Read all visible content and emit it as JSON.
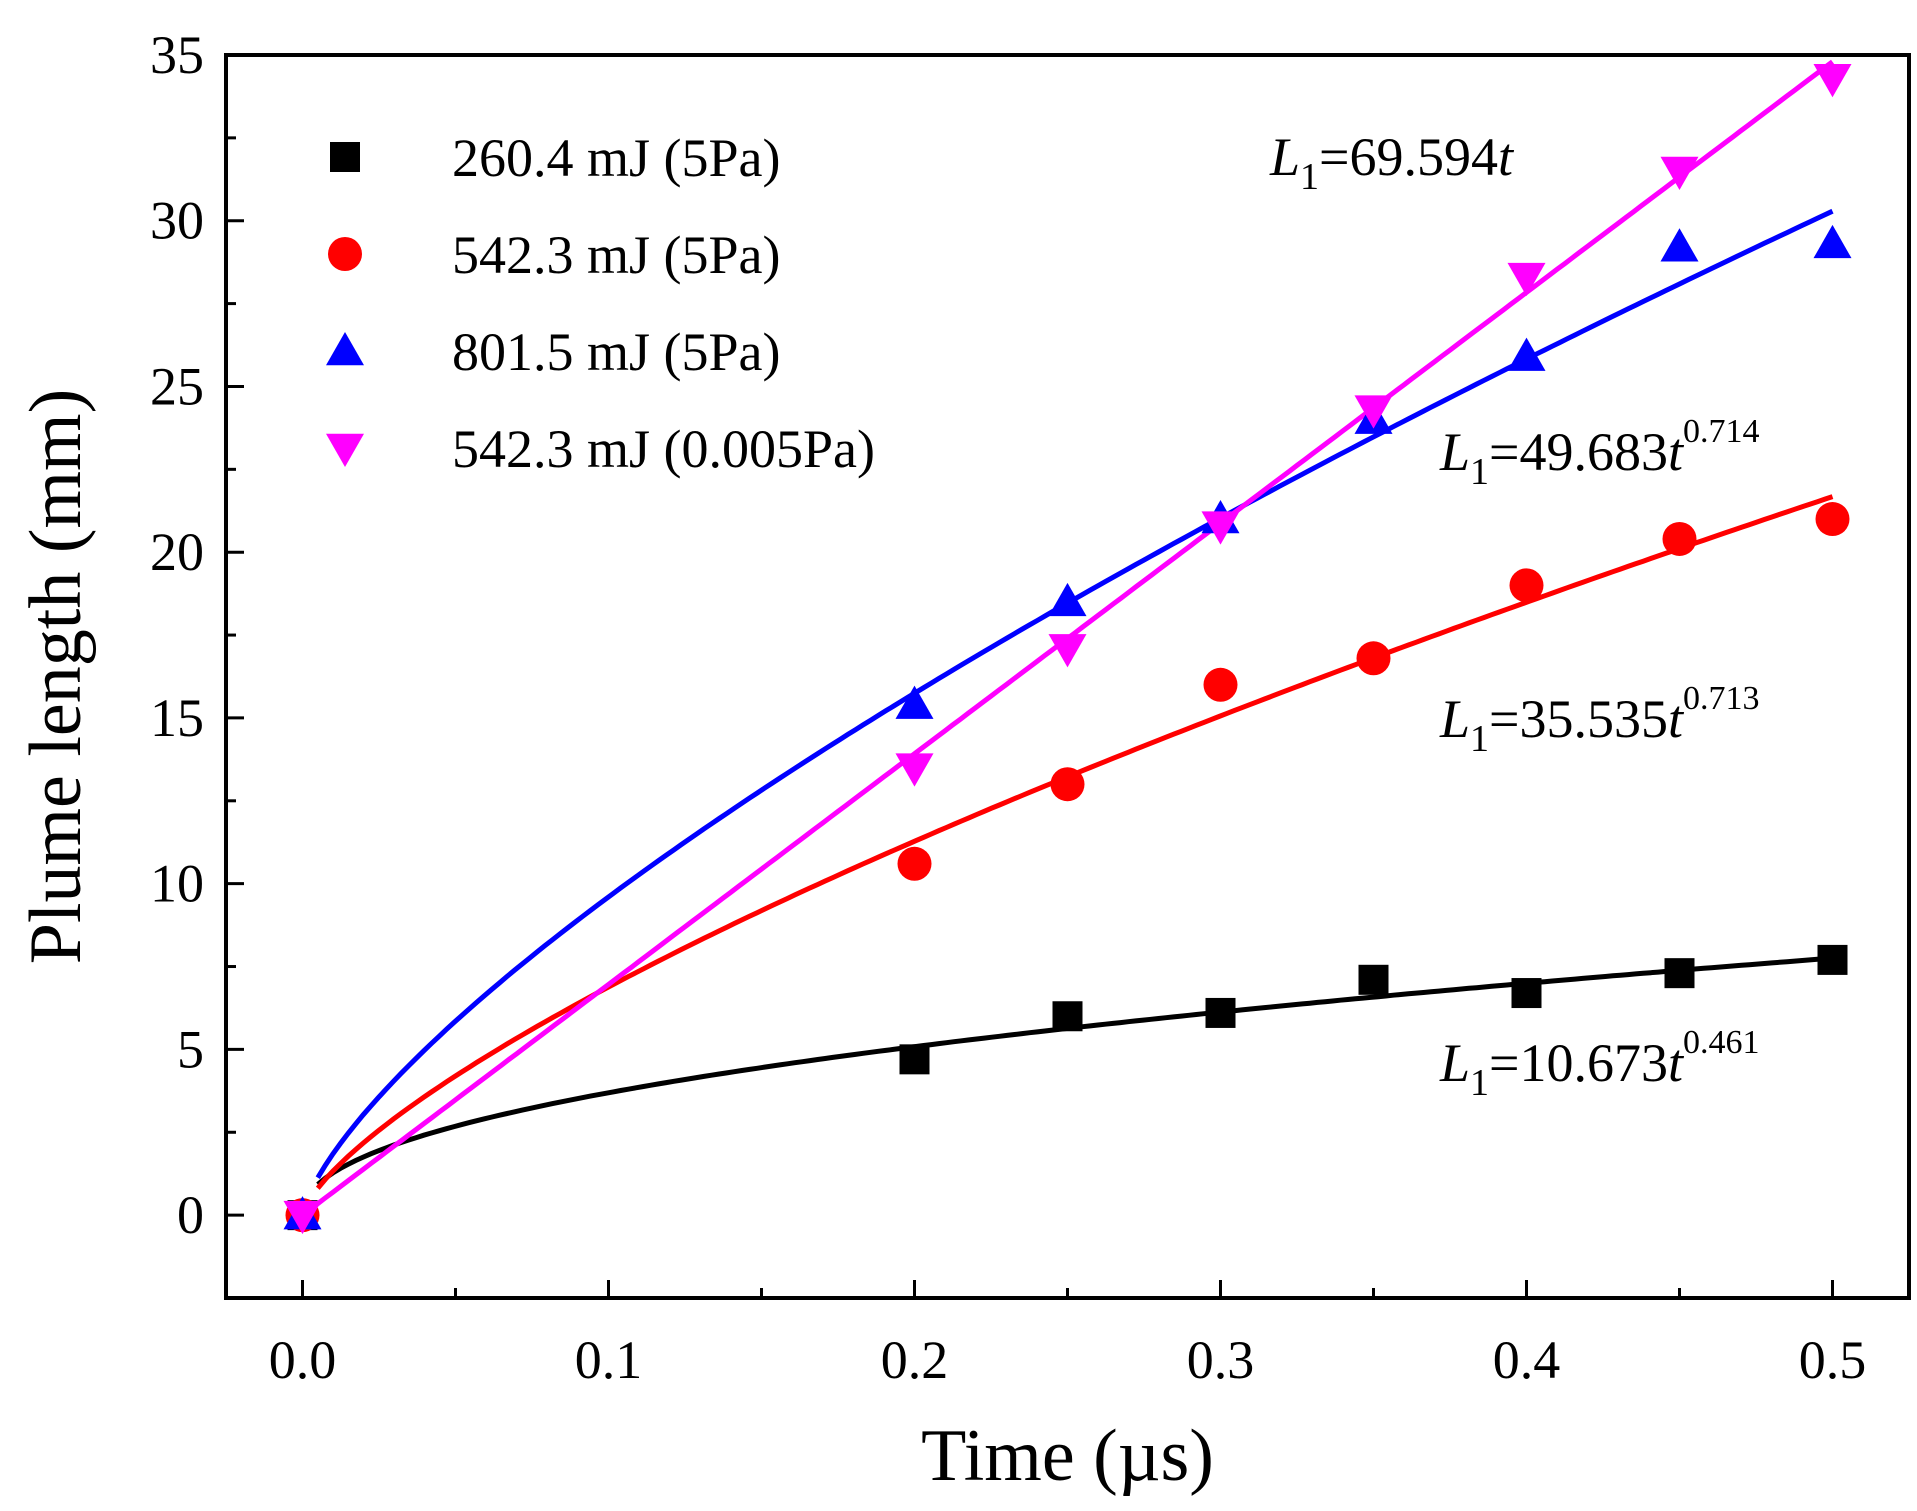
{
  "chart_data": {
    "type": "scatter",
    "xlabel": "Time (µs)",
    "ylabel": "Plume length (mm)",
    "xlim": [
      -0.025,
      0.525
    ],
    "ylim": [
      -2.5,
      35
    ],
    "xticks": [
      "0.0",
      "0.1",
      "0.2",
      "0.3",
      "0.4",
      "0.5"
    ],
    "yticks": [
      "0",
      "5",
      "10",
      "15",
      "20",
      "25",
      "30",
      "35"
    ],
    "legend_position": "top-left",
    "series": [
      {
        "name": "260.4 mJ (5Pa)",
        "color": "#000000",
        "marker": "square",
        "x": [
          0.0,
          0.2,
          0.25,
          0.3,
          0.35,
          0.4,
          0.45,
          0.5
        ],
        "y": [
          0.0,
          4.7,
          6.0,
          6.1,
          7.1,
          6.7,
          7.3,
          7.7
        ],
        "fit": {
          "coef": 10.673,
          "exp": 0.461
        }
      },
      {
        "name": "542.3 mJ (5Pa)",
        "color": "#ff0000",
        "marker": "circle",
        "x": [
          0.0,
          0.2,
          0.25,
          0.3,
          0.35,
          0.4,
          0.45,
          0.5
        ],
        "y": [
          0.0,
          10.6,
          13.0,
          16.0,
          16.8,
          19.0,
          20.4,
          21.0
        ],
        "fit": {
          "coef": 35.535,
          "exp": 0.713
        }
      },
      {
        "name": "801.5 mJ (5Pa)",
        "color": "#0000ff",
        "marker": "triangle-up",
        "x": [
          0.0,
          0.2,
          0.25,
          0.3,
          0.35,
          0.4,
          0.45,
          0.5
        ],
        "y": [
          0.0,
          15.4,
          18.5,
          21.0,
          24.0,
          25.9,
          29.2,
          29.3
        ],
        "fit": {
          "coef": 49.683,
          "exp": 0.714
        }
      },
      {
        "name": "542.3 mJ (0.005Pa)",
        "color": "#ff00ff",
        "marker": "triangle-down",
        "x": [
          0.0,
          0.2,
          0.25,
          0.3,
          0.35,
          0.4,
          0.45,
          0.5
        ],
        "y": [
          0.0,
          13.5,
          17.1,
          20.8,
          24.3,
          28.3,
          31.5,
          34.3
        ],
        "fit": {
          "coef": 69.594,
          "exp": 1
        }
      }
    ],
    "annotations": [
      {
        "symbol": "L",
        "sub": "1",
        "text": "=69.594",
        "var": "t",
        "sup": ""
      },
      {
        "symbol": "L",
        "sub": "1",
        "text": "=49.683",
        "var": "t",
        "sup": "0.714"
      },
      {
        "symbol": "L",
        "sub": "1",
        "text": "=35.535",
        "var": "t",
        "sup": "0.713"
      },
      {
        "symbol": "L",
        "sub": "1",
        "text": "=10.673",
        "var": "t",
        "sup": "0.461"
      }
    ]
  }
}
